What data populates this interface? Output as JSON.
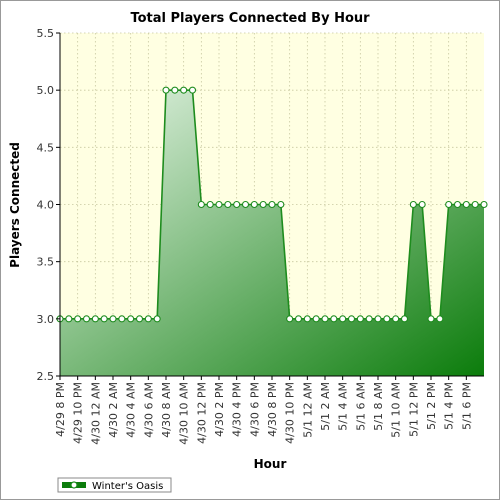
{
  "chart_data": {
    "type": "area",
    "title": "Total Players Connected By Hour",
    "xlabel": "Hour",
    "ylabel": "Players Connected",
    "ylim": [
      2.5,
      5.5
    ],
    "yticks": [
      "2.5",
      "3.0",
      "3.5",
      "4.0",
      "4.5",
      "5.0",
      "5.5"
    ],
    "grid": true,
    "legend_position": "bottom-left",
    "colors": {
      "line": "#1e8c1e",
      "fill_light": "#e9f6e9",
      "fill_dark": "#0b7c0b",
      "plot_bg": "#ffffe2",
      "grid": "#c8c8a0",
      "marker_fill": "#ffffff"
    },
    "x_tick_labels": [
      "4/29 8 PM",
      "4/29 10 PM",
      "4/30 12 AM",
      "4/30 2 AM",
      "4/30 4 AM",
      "4/30 6 AM",
      "4/30 8 AM",
      "4/30 10 AM",
      "4/30 12 PM",
      "4/30 2 PM",
      "4/30 4 PM",
      "4/30 6 PM",
      "4/30 8 PM",
      "4/30 10 PM",
      "5/1 12 AM",
      "5/1 2 AM",
      "5/1 4 AM",
      "5/1 6 AM",
      "5/1 8 AM",
      "5/1 10 AM",
      "5/1 12 PM",
      "5/1 2 PM",
      "5/1 4 PM",
      "5/1 6 PM"
    ],
    "x_start": "4/29 8 PM",
    "x_step": "1 hour",
    "series": [
      {
        "name": "Winter's Oasis",
        "values": [
          3,
          3,
          3,
          3,
          3,
          3,
          3,
          3,
          3,
          3,
          3,
          3,
          5,
          5,
          5,
          5,
          4,
          4,
          4,
          4,
          4,
          4,
          4,
          4,
          4,
          4,
          3,
          3,
          3,
          3,
          3,
          3,
          3,
          3,
          3,
          3,
          3,
          3,
          3,
          3,
          4,
          4,
          3,
          3,
          4,
          4,
          4,
          4,
          4
        ]
      }
    ]
  }
}
